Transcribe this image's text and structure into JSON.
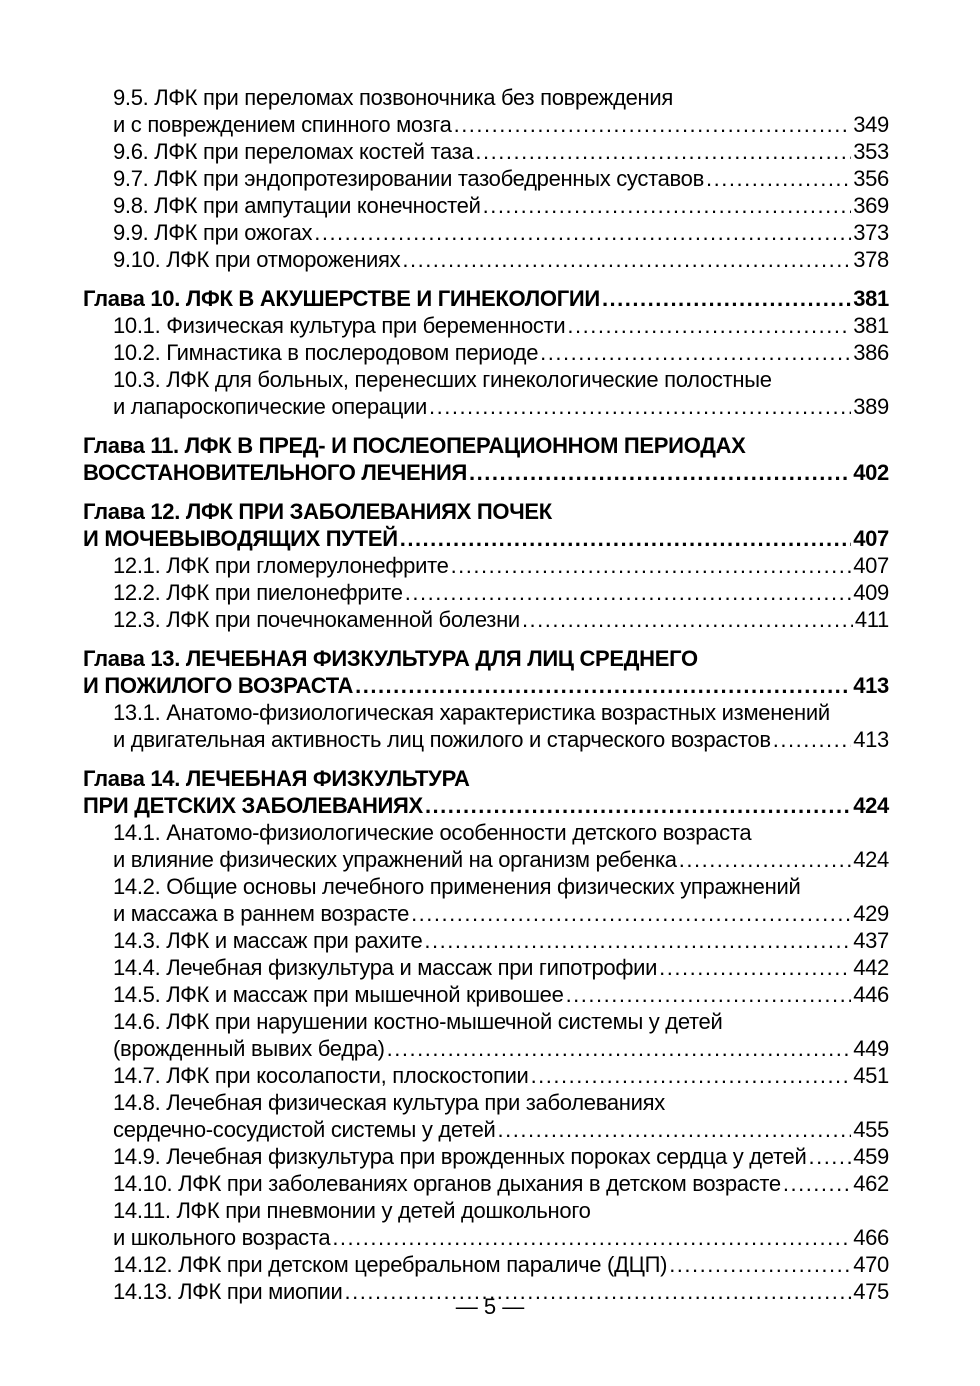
{
  "colors": {
    "background": "#ffffff",
    "text": "#000000"
  },
  "footer": {
    "page_label": "— 5 —"
  },
  "toc": {
    "entries": [
      {
        "type": "sub",
        "lines": [
          "9.5. ЛФК при переломах позвоночника без повреждения",
          "и с повреждением спинного мозга"
        ],
        "page": "349"
      },
      {
        "type": "sub",
        "lines": [
          "9.6. ЛФК при переломах костей таза"
        ],
        "page": "353"
      },
      {
        "type": "sub",
        "lines": [
          "9.7. ЛФК при эндопротезировании тазобедренных суставов"
        ],
        "page": "356"
      },
      {
        "type": "sub",
        "lines": [
          "9.8. ЛФК при ампутации конечностей"
        ],
        "page": "369"
      },
      {
        "type": "sub",
        "lines": [
          "9.9. ЛФК при ожогах"
        ],
        "page": "373"
      },
      {
        "type": "sub",
        "lines": [
          "9.10. ЛФК при отморожениях"
        ],
        "page": "378"
      },
      {
        "type": "chapter",
        "lines": [
          "Глава 10. ЛФК В АКУШЕРСТВЕ И ГИНЕКОЛОГИИ"
        ],
        "page": "381"
      },
      {
        "type": "sub",
        "lines": [
          "10.1. Физическая культура при беременности"
        ],
        "page": "381"
      },
      {
        "type": "sub",
        "lines": [
          "10.2. Гимнастика в послеродовом периоде"
        ],
        "page": "386"
      },
      {
        "type": "sub",
        "lines": [
          "10.3. ЛФК для больных, перенесших гинекологические полостные",
          "и лапароскопические операции"
        ],
        "page": "389"
      },
      {
        "type": "chapter",
        "lines": [
          "Глава 11. ЛФК В ПРЕД- И ПОСЛЕОПЕРАЦИОННОМ ПЕРИОДАХ",
          "ВОССТАНОВИТЕЛЬНОГО ЛЕЧЕНИЯ"
        ],
        "page": "402"
      },
      {
        "type": "chapter",
        "lines": [
          "Глава 12. ЛФК ПРИ ЗАБОЛЕВАНИЯХ ПОЧЕК",
          "И МОЧЕВЫВОДЯЩИХ ПУТЕЙ"
        ],
        "page": "407"
      },
      {
        "type": "sub",
        "lines": [
          "12.1. ЛФК при гломерулонефрите"
        ],
        "page": "407"
      },
      {
        "type": "sub",
        "lines": [
          "12.2. ЛФК при пиелонефрите"
        ],
        "page": "409"
      },
      {
        "type": "sub",
        "lines": [
          "12.3. ЛФК при почечнокаменной болезни"
        ],
        "page": "411"
      },
      {
        "type": "chapter",
        "lines": [
          "Глава 13. ЛЕЧЕБНАЯ ФИЗКУЛЬТУРА ДЛЯ ЛИЦ СРЕДНЕГО",
          "И ПОЖИЛОГО ВОЗРАСТА"
        ],
        "page": "413"
      },
      {
        "type": "sub",
        "lines": [
          "13.1. Анатомо-физиологическая характеристика возрастных изменений",
          "и двигательная активность лиц пожилого и старческого возрастов"
        ],
        "page": "413"
      },
      {
        "type": "chapter",
        "lines": [
          "Глава 14. ЛЕЧЕБНАЯ ФИЗКУЛЬТУРА",
          "ПРИ ДЕТСКИХ ЗАБОЛЕВАНИЯХ"
        ],
        "page": "424"
      },
      {
        "type": "sub",
        "lines": [
          "14.1. Анатомо-физиологические особенности детского возраста",
          "и влияние физических упражнений на организм ребенка"
        ],
        "page": "424"
      },
      {
        "type": "sub",
        "lines": [
          "14.2. Общие основы лечебного применения физических упражнений",
          "и массажа в раннем возрасте"
        ],
        "page": "429"
      },
      {
        "type": "sub",
        "lines": [
          "14.3. ЛФК и массаж при рахите"
        ],
        "page": "437"
      },
      {
        "type": "sub",
        "lines": [
          "14.4. Лечебная физкультура и массаж при гипотрофии"
        ],
        "page": "442"
      },
      {
        "type": "sub",
        "lines": [
          "14.5. ЛФК и массаж при мышечной кривошее"
        ],
        "page": "446"
      },
      {
        "type": "sub",
        "lines": [
          "14.6. ЛФК при нарушении костно-мышечной системы у детей",
          "(врожденный вывих бедра)"
        ],
        "page": "449"
      },
      {
        "type": "sub",
        "lines": [
          "14.7. ЛФК при косолапости, плоскостопии"
        ],
        "page": "451"
      },
      {
        "type": "sub",
        "lines": [
          "14.8. Лечебная физическая культура при заболеваниях",
          "сердечно-сосудистой системы у детей"
        ],
        "page": "455"
      },
      {
        "type": "sub",
        "lines": [
          "14.9. Лечебная физкультура при врожденных пороках сердца у детей"
        ],
        "page": "459"
      },
      {
        "type": "sub",
        "lines": [
          "14.10. ЛФК при заболеваниях органов дыхания в детском возрасте"
        ],
        "page": "462"
      },
      {
        "type": "sub",
        "lines": [
          "14.11. ЛФК при пневмонии у детей дошкольного",
          "и школьного возраста"
        ],
        "page": "466"
      },
      {
        "type": "sub",
        "lines": [
          "14.12. ЛФК при детском церебральном параличе (ДЦП)"
        ],
        "page": "470"
      },
      {
        "type": "sub",
        "lines": [
          "14.13. ЛФК при миопии"
        ],
        "page": "475"
      }
    ]
  }
}
